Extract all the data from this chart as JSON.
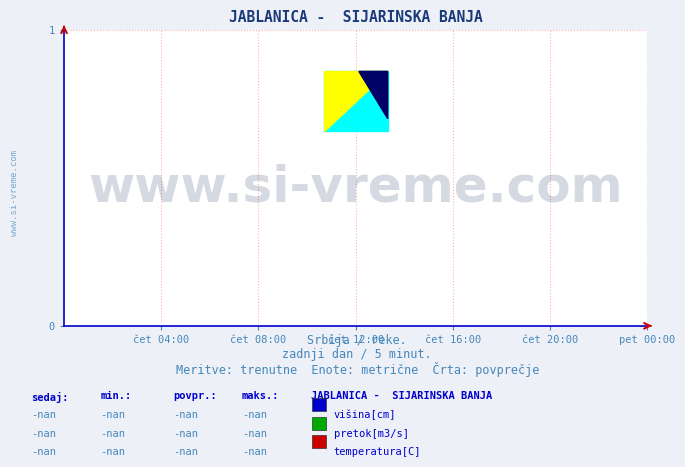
{
  "title": "JABLANICA -  SIJARINSKA BANJA",
  "title_color": "#1a3a7a",
  "title_fontsize": 10.5,
  "bg_color": "#eef0f8",
  "plot_bg_color": "#ffffff",
  "xlim": [
    0,
    288
  ],
  "ylim": [
    0,
    1
  ],
  "yticks": [
    0,
    1
  ],
  "xtick_labels": [
    "čet 04:00",
    "čet 08:00",
    "čet 12:00",
    "čet 16:00",
    "čet 20:00",
    "pet 00:00"
  ],
  "xtick_positions": [
    48,
    96,
    144,
    192,
    240,
    288
  ],
  "grid_color": "#ffb0b0",
  "grid_linestyle": ":",
  "axis_color": "#0000cc",
  "arrow_color": "#cc0000",
  "watermark_text": "www.si-vreme.com",
  "watermark_color": "#1a3060",
  "watermark_alpha": 0.18,
  "watermark_fontsize": 36,
  "subtitle_line1": "Srbija / reke.",
  "subtitle_line2": "zadnji dan / 5 minut.",
  "subtitle_line3": "Meritve: trenutne  Enote: metrične  Črta: povprečje",
  "subtitle_color": "#4488bb",
  "subtitle_fontsize": 8.5,
  "table_header": [
    "sedaj:",
    "min.:",
    "povpr.:",
    "maks.:"
  ],
  "table_values": [
    [
      "-nan",
      "-nan",
      "-nan",
      "-nan"
    ],
    [
      "-nan",
      "-nan",
      "-nan",
      "-nan"
    ],
    [
      "-nan",
      "-nan",
      "-nan",
      "-nan"
    ]
  ],
  "table_header_color": "#0000cc",
  "table_value_color": "#4488bb",
  "legend_title": "JABLANICA -  SIJARINSKA BANJA",
  "legend_items": [
    "višina[cm]",
    "pretok[m3/s]",
    "temperatura[C]"
  ],
  "legend_colors": [
    "#0000cc",
    "#00aa00",
    "#cc0000"
  ],
  "sidebar_text": "www.si-vreme.com",
  "sidebar_color": "#7aaacc",
  "sidebar_fontsize": 6.5
}
